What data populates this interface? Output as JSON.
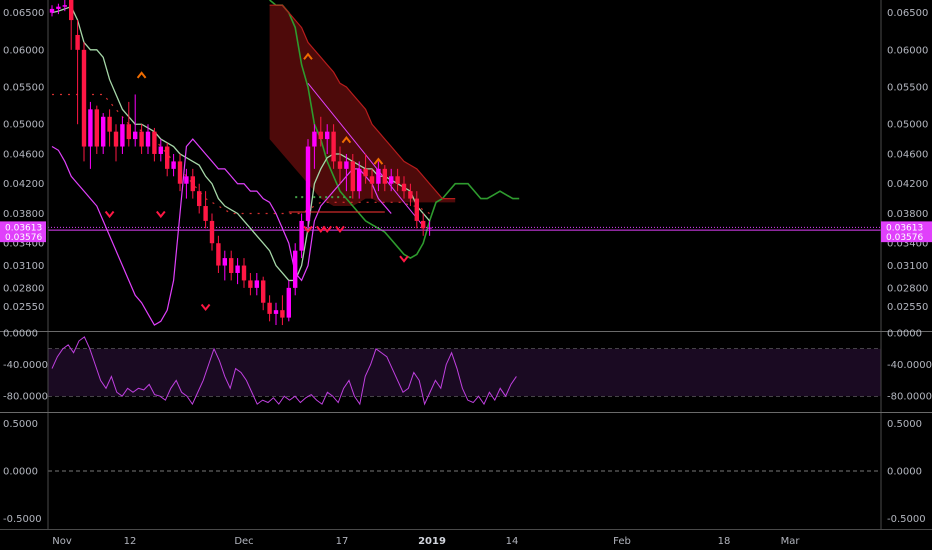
{
  "chart_data": [
    {
      "type": "candlestick",
      "panel": "price",
      "title": "",
      "ylim": [
        0.0222,
        0.0667
      ],
      "y_ticks": [
        "0.06500",
        "0.06000",
        "0.05500",
        "0.05000",
        "0.04600",
        "0.04200",
        "0.03800",
        "0.03400",
        "0.03100",
        "0.02800",
        "0.02550"
      ],
      "x_ticks": [
        "Nov",
        "12",
        "Dec",
        "17",
        "2019",
        "14",
        "Feb",
        "18",
        "Mar"
      ],
      "price_tags": [
        {
          "value": "0.03613",
          "color": "#e040fb"
        },
        {
          "value": "0.03576",
          "color": "#e040fb"
        }
      ],
      "candles": [
        [
          0.065,
          0.066,
          0.0645,
          0.0655
        ],
        [
          0.0655,
          0.0662,
          0.0648,
          0.0658
        ],
        [
          0.0658,
          0.0668,
          0.0652,
          0.066
        ],
        [
          0.0667,
          0.0667,
          0.06,
          0.064
        ],
        [
          0.062,
          0.064,
          0.05,
          0.06
        ],
        [
          0.06,
          0.061,
          0.045,
          0.047
        ],
        [
          0.047,
          0.053,
          0.044,
          0.052
        ],
        [
          0.052,
          0.0525,
          0.046,
          0.047
        ],
        [
          0.047,
          0.0515,
          0.046,
          0.051
        ],
        [
          0.051,
          0.052,
          0.047,
          0.049
        ],
        [
          0.049,
          0.05,
          0.045,
          0.047
        ],
        [
          0.047,
          0.051,
          0.046,
          0.05
        ],
        [
          0.05,
          0.053,
          0.047,
          0.048
        ],
        [
          0.048,
          0.054,
          0.047,
          0.049
        ],
        [
          0.049,
          0.05,
          0.046,
          0.047
        ],
        [
          0.047,
          0.05,
          0.046,
          0.049
        ],
        [
          0.049,
          0.0495,
          0.045,
          0.046
        ],
        [
          0.046,
          0.048,
          0.045,
          0.047
        ],
        [
          0.047,
          0.0475,
          0.043,
          0.044
        ],
        [
          0.044,
          0.046,
          0.043,
          0.045
        ],
        [
          0.045,
          0.046,
          0.041,
          0.042
        ],
        [
          0.042,
          0.044,
          0.04,
          0.043
        ],
        [
          0.043,
          0.044,
          0.04,
          0.041
        ],
        [
          0.041,
          0.042,
          0.038,
          0.039
        ],
        [
          0.039,
          0.041,
          0.036,
          0.037
        ],
        [
          0.037,
          0.038,
          0.033,
          0.034
        ],
        [
          0.034,
          0.035,
          0.03,
          0.031
        ],
        [
          0.031,
          0.033,
          0.029,
          0.032
        ],
        [
          0.032,
          0.033,
          0.029,
          0.03
        ],
        [
          0.03,
          0.032,
          0.0285,
          0.031
        ],
        [
          0.031,
          0.032,
          0.028,
          0.029
        ],
        [
          0.029,
          0.03,
          0.027,
          0.028
        ],
        [
          0.028,
          0.03,
          0.027,
          0.029
        ],
        [
          0.029,
          0.0295,
          0.025,
          0.026
        ],
        [
          0.026,
          0.027,
          0.0235,
          0.0245
        ],
        [
          0.0245,
          0.026,
          0.023,
          0.025
        ],
        [
          0.025,
          0.027,
          0.023,
          0.024
        ],
        [
          0.024,
          0.029,
          0.0235,
          0.028
        ],
        [
          0.028,
          0.034,
          0.027,
          0.033
        ],
        [
          0.033,
          0.038,
          0.032,
          0.037
        ],
        [
          0.037,
          0.048,
          0.036,
          0.047
        ],
        [
          0.047,
          0.05,
          0.044,
          0.049
        ],
        [
          0.049,
          0.051,
          0.047,
          0.048
        ],
        [
          0.048,
          0.05,
          0.046,
          0.049
        ],
        [
          0.049,
          0.05,
          0.044,
          0.045
        ],
        [
          0.045,
          0.047,
          0.042,
          0.044
        ],
        [
          0.044,
          0.046,
          0.041,
          0.045
        ],
        [
          0.045,
          0.046,
          0.04,
          0.041
        ],
        [
          0.041,
          0.045,
          0.04,
          0.044
        ],
        [
          0.044,
          0.046,
          0.042,
          0.043
        ],
        [
          0.043,
          0.044,
          0.04,
          0.042
        ],
        [
          0.042,
          0.045,
          0.041,
          0.044
        ],
        [
          0.044,
          0.0445,
          0.041,
          0.042
        ],
        [
          0.042,
          0.044,
          0.041,
          0.043
        ],
        [
          0.043,
          0.044,
          0.041,
          0.042
        ],
        [
          0.042,
          0.043,
          0.04,
          0.041
        ],
        [
          0.041,
          0.042,
          0.039,
          0.04
        ],
        [
          0.04,
          0.041,
          0.036,
          0.037
        ],
        [
          0.037,
          0.038,
          0.035,
          0.036
        ],
        [
          0.036,
          0.037,
          0.035,
          0.0361
        ]
      ],
      "tenkan": [
        0.065,
        0.0652,
        0.0655,
        0.0658,
        0.064,
        0.061,
        0.06,
        0.06,
        0.059,
        0.056,
        0.054,
        0.052,
        0.051,
        0.05,
        0.05,
        0.0495,
        0.049,
        0.048,
        0.0475,
        0.047,
        0.046,
        0.0455,
        0.045,
        0.0445,
        0.043,
        0.042,
        0.04,
        0.039,
        0.0385,
        0.038,
        0.037,
        0.036,
        0.035,
        0.034,
        0.033,
        0.031,
        0.03,
        0.029,
        0.029,
        0.031,
        0.036,
        0.042,
        0.044,
        0.0455,
        0.046,
        0.046,
        0.0455,
        0.045,
        0.0445,
        0.044,
        0.044,
        0.043,
        0.043,
        0.0425,
        0.042,
        0.0415,
        0.041,
        0.039,
        0.038,
        0.037
      ],
      "kijun": [
        0.054,
        0.054,
        0.054,
        0.054,
        0.054,
        0.054,
        0.054,
        0.054,
        0.054,
        0.053,
        0.052,
        0.051,
        0.05,
        0.05,
        0.049,
        0.0485,
        0.048,
        0.047,
        0.046,
        0.045,
        0.044,
        0.043,
        0.042,
        0.041,
        0.04,
        0.0395,
        0.039,
        0.0385,
        0.038,
        0.038,
        0.038,
        0.038,
        0.038,
        0.038,
        0.038,
        0.038,
        0.038,
        0.038,
        0.038,
        0.038,
        0.0385,
        0.039,
        0.0395,
        0.0395,
        0.0395,
        0.0395,
        0.0395,
        0.0395,
        0.0395,
        0.0395,
        0.0395,
        0.0395,
        0.0395,
        0.0395,
        0.0395,
        0.0395,
        0.039,
        0.039,
        0.0385,
        0.038
      ],
      "chikou": [
        0.047,
        0.0465,
        0.045,
        0.043,
        0.042,
        0.041,
        0.04,
        0.039,
        0.037,
        0.035,
        0.033,
        0.031,
        0.029,
        0.027,
        0.026,
        0.0245,
        0.023,
        0.0235,
        0.025,
        0.029,
        0.038,
        0.047,
        0.048,
        0.047,
        0.046,
        0.045,
        0.044,
        0.044,
        0.043,
        0.042,
        0.042,
        0.041,
        0.041,
        0.04,
        0.0395,
        0.038,
        0.036,
        0.034,
        0.03,
        0.029,
        0.031,
        0.037,
        0.039,
        0.04,
        0.041,
        0.042,
        0.043,
        0.044,
        0.044,
        0.043,
        0.042,
        0.04,
        0.039,
        0.038
      ],
      "cloud_a": [
        0.0667,
        0.066,
        0.066,
        0.065,
        0.063,
        0.058,
        0.055,
        0.05,
        0.048,
        0.045,
        0.043,
        0.041,
        0.04,
        0.039,
        0.038,
        0.037,
        0.0365,
        0.036,
        0.0355,
        0.0345,
        0.0335,
        0.0325,
        0.032,
        0.0325,
        0.034,
        0.037,
        0.0395,
        0.04,
        0.041,
        0.042,
        0.042,
        0.042,
        0.041,
        0.04,
        0.04,
        0.0405,
        0.041,
        0.0405,
        0.04,
        0.04
      ],
      "cloud_b": [
        0.058,
        0.057,
        0.056,
        0.055,
        0.054,
        0.053,
        0.052,
        0.051,
        0.05,
        0.049,
        0.048,
        0.047,
        0.046,
        0.045,
        0.044,
        0.043,
        0.042,
        0.041,
        0.04,
        0.0395,
        0.039,
        0.039,
        0.039,
        0.039,
        0.0395,
        0.04,
        0.04,
        0.0395,
        0.0395,
        0.0395,
        0.0395,
        0.0395,
        0.0395,
        0.0395,
        0.0395,
        0.0395,
        0.0395,
        0.0395,
        0.0395,
        0.0395
      ],
      "cloud_top": [
        0.066,
        0.066,
        0.066,
        0.065,
        0.064,
        0.063,
        0.061,
        0.06,
        0.059,
        0.058,
        0.057,
        0.0555,
        0.055,
        0.054,
        0.053,
        0.052,
        0.05,
        0.049,
        0.048,
        0.047,
        0.046,
        0.045,
        0.0445,
        0.044,
        0.043,
        0.042,
        0.041,
        0.04,
        0.04,
        0.04
      ],
      "signals_down": [
        [
          9,
          0.038
        ],
        [
          17,
          0.038
        ],
        [
          24,
          0.0255
        ],
        [
          40,
          0.036
        ],
        [
          42,
          0.036
        ],
        [
          43,
          0.036
        ],
        [
          45,
          0.036
        ],
        [
          55,
          0.032
        ]
      ],
      "signals_up": [
        [
          14,
          0.0565
        ],
        [
          40,
          0.059
        ],
        [
          46,
          0.0478
        ],
        [
          51,
          0.0449
        ]
      ],
      "trendlines": [
        {
          "from": [
            40,
            0.0555
          ],
          "to": [
            58,
            0.0363
          ],
          "color": "#e040fb"
        },
        {
          "from": [
            37,
            0.0382
          ],
          "to": [
            52,
            0.0382
          ],
          "color": "#ff3333"
        }
      ]
    },
    {
      "type": "line",
      "panel": "oscillator",
      "ylim": [
        -100,
        0
      ],
      "y_ticks": [
        "0.0000",
        "-40.0000",
        "-80.0000"
      ],
      "band": [
        -20,
        -80
      ],
      "values": [
        -45,
        -30,
        -20,
        -15,
        -25,
        -10,
        -5,
        -20,
        -40,
        -60,
        -70,
        -55,
        -75,
        -80,
        -70,
        -75,
        -70,
        -72,
        -65,
        -78,
        -80,
        -85,
        -70,
        -60,
        -75,
        -80,
        -90,
        -75,
        -60,
        -40,
        -20,
        -35,
        -55,
        -70,
        -45,
        -50,
        -60,
        -75,
        -90,
        -85,
        -88,
        -82,
        -90,
        -80,
        -85,
        -80,
        -88,
        -82,
        -78,
        -85,
        -90,
        -75,
        -80,
        -88,
        -70,
        -60,
        -80,
        -90,
        -55,
        -40,
        -20,
        -25,
        -30,
        -45,
        -60,
        -75,
        -70,
        -50,
        -60,
        -90,
        -75,
        -60,
        -70,
        -40,
        -25,
        -45,
        -70,
        -85,
        -88,
        -80,
        -90,
        -75,
        -85,
        -70,
        -80,
        -65,
        -55
      ]
    },
    {
      "type": "line",
      "panel": "empty",
      "ylim": [
        -0.6,
        0.6
      ],
      "y_ticks": [
        "0.5000",
        "0.0000",
        "-0.5000"
      ]
    }
  ]
}
